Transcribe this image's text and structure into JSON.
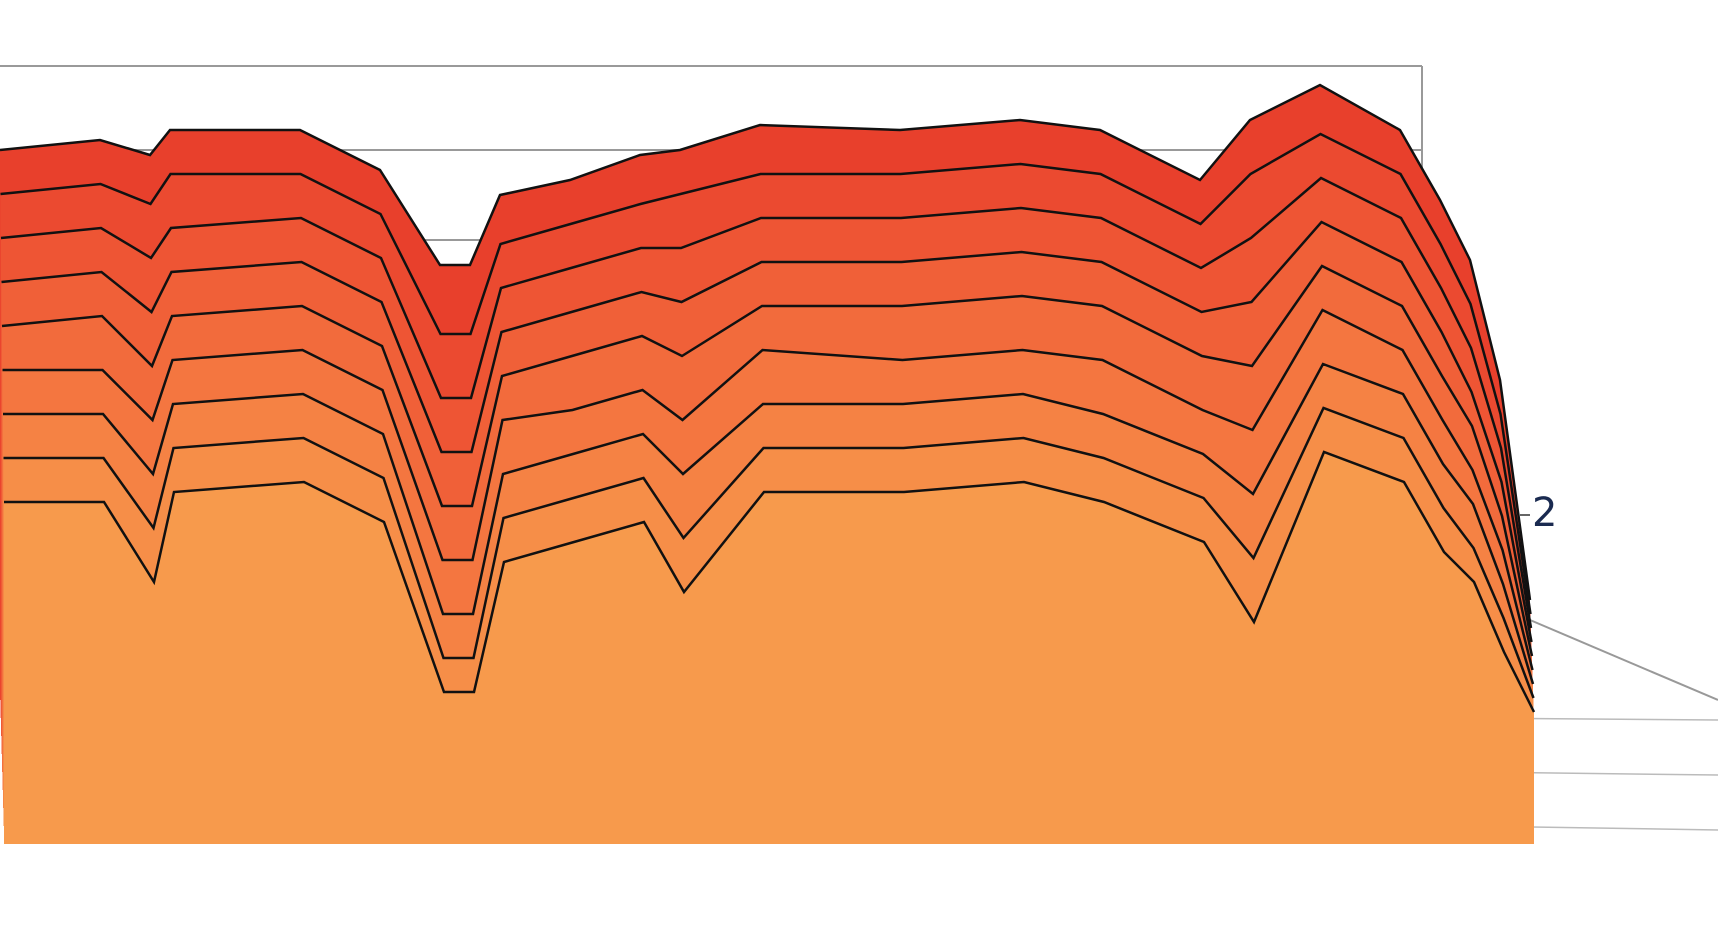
{
  "chart_data": {
    "type": "waterfall",
    "x": [
      0,
      100,
      150,
      170,
      300,
      380,
      440,
      470,
      500,
      570,
      640,
      680,
      760,
      900,
      1020,
      1100,
      1200,
      1250,
      1320,
      1400,
      1440,
      1470,
      1500,
      1530
    ],
    "xlim": [
      0,
      1540
    ],
    "ylim": [
      0,
      65
    ],
    "zticks": [
      2
    ],
    "series": [
      {
        "color": "#e8402c",
        "values": [
          55,
          56,
          54.5,
          57,
          57,
          53,
          43.5,
          43.5,
          50.5,
          52,
          54.5,
          55,
          57.5,
          57,
          58,
          57,
          52,
          58,
          61.5,
          57,
          50,
          44,
          32,
          10
        ]
      },
      {
        "color": "#eb4a30",
        "values": [
          51,
          52,
          50,
          53,
          53,
          49,
          37,
          37,
          46,
          48,
          50,
          51,
          53,
          53,
          54,
          53,
          48,
          53,
          57,
          53,
          46,
          40,
          29,
          9
        ]
      },
      {
        "color": "#ee5534",
        "values": [
          47,
          48,
          45,
          48,
          49,
          45,
          31,
          31,
          42,
          44,
          46,
          46,
          49,
          49,
          50,
          49,
          44,
          47,
          53,
          49,
          42,
          36,
          26,
          8
        ]
      },
      {
        "color": "#f06038",
        "values": [
          43,
          44,
          40,
          44,
          45,
          41,
          26,
          26,
          38,
          40,
          42,
          41,
          45,
          45,
          46,
          45,
          40,
          41,
          49,
          45,
          38,
          32,
          23,
          7
        ]
      },
      {
        "color": "#f26b3c",
        "values": [
          39,
          40,
          35,
          40,
          41,
          37,
          21,
          21,
          34,
          36,
          38,
          36,
          41,
          41,
          42,
          41,
          36,
          35,
          45,
          41,
          34,
          29,
          20,
          6
        ]
      },
      {
        "color": "#f47640",
        "values": [
          35,
          35,
          30,
          36,
          37,
          33,
          16,
          16,
          30,
          31,
          33,
          30,
          37,
          36,
          37,
          36,
          31,
          29,
          41,
          37,
          30,
          25,
          17,
          5
        ]
      },
      {
        "color": "#f58244",
        "values": [
          31,
          31,
          25,
          32,
          33,
          29,
          11,
          11,
          25,
          27,
          29,
          25,
          32,
          32,
          33,
          31,
          27,
          23,
          36,
          33,
          26,
          22,
          14,
          4
        ]
      },
      {
        "color": "#f68e48",
        "values": [
          27,
          27,
          20,
          28,
          29,
          25,
          7,
          7,
          21,
          23,
          25,
          19,
          28,
          28,
          29,
          27,
          23,
          17,
          32,
          29,
          22,
          18,
          11,
          3
        ]
      },
      {
        "color": "#f79a4c",
        "values": [
          23,
          23,
          15,
          24,
          25,
          21,
          4,
          4,
          17,
          19,
          21,
          14,
          24,
          24,
          25,
          23,
          19,
          11,
          28,
          25,
          18,
          15,
          8,
          2
        ]
      }
    ]
  }
}
